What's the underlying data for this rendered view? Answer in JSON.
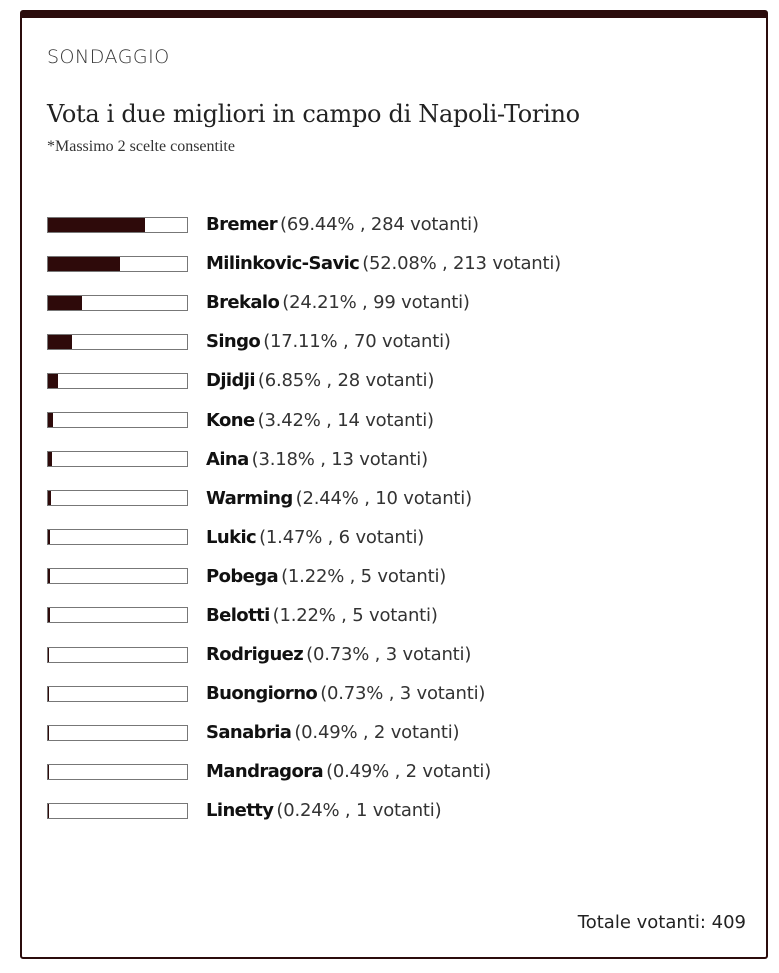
{
  "poll": {
    "kicker": "SONDAGGIO",
    "title": "Vota i due migliori in campo di Napoli-Torino",
    "note": "*Massimo 2 scelte consentite",
    "options": [
      {
        "name": "Bremer",
        "percent": 69.44,
        "detail": "(69.44% , 284 votanti)"
      },
      {
        "name": "Milinkovic-Savic",
        "percent": 52.08,
        "detail": "(52.08% , 213 votanti)"
      },
      {
        "name": "Brekalo",
        "percent": 24.21,
        "detail": "(24.21% , 99 votanti)"
      },
      {
        "name": "Singo",
        "percent": 17.11,
        "detail": "(17.11% , 70 votanti)"
      },
      {
        "name": "Djidji",
        "percent": 6.85,
        "detail": "(6.85% , 28 votanti)"
      },
      {
        "name": "Kone",
        "percent": 3.42,
        "detail": "(3.42% , 14 votanti)"
      },
      {
        "name": "Aina",
        "percent": 3.18,
        "detail": "(3.18% , 13 votanti)"
      },
      {
        "name": "Warming",
        "percent": 2.44,
        "detail": "(2.44% , 10 votanti)"
      },
      {
        "name": "Lukic",
        "percent": 1.47,
        "detail": "(1.47% , 6 votanti)"
      },
      {
        "name": "Pobega",
        "percent": 1.22,
        "detail": "(1.22% , 5 votanti)"
      },
      {
        "name": "Belotti",
        "percent": 1.22,
        "detail": "(1.22% , 5 votanti)"
      },
      {
        "name": "Rodriguez",
        "percent": 0.73,
        "detail": "(0.73% , 3 votanti)"
      },
      {
        "name": "Buongiorno",
        "percent": 0.73,
        "detail": "(0.73% , 3 votanti)"
      },
      {
        "name": "Sanabria",
        "percent": 0.49,
        "detail": "(0.49% , 2 votanti)"
      },
      {
        "name": "Mandragora",
        "percent": 0.49,
        "detail": "(0.49% , 2 votanti)"
      },
      {
        "name": "Linetty",
        "percent": 0.24,
        "detail": "(0.24% , 1 votanti)"
      }
    ],
    "total_label": "Totale votanti:",
    "total": 409
  }
}
